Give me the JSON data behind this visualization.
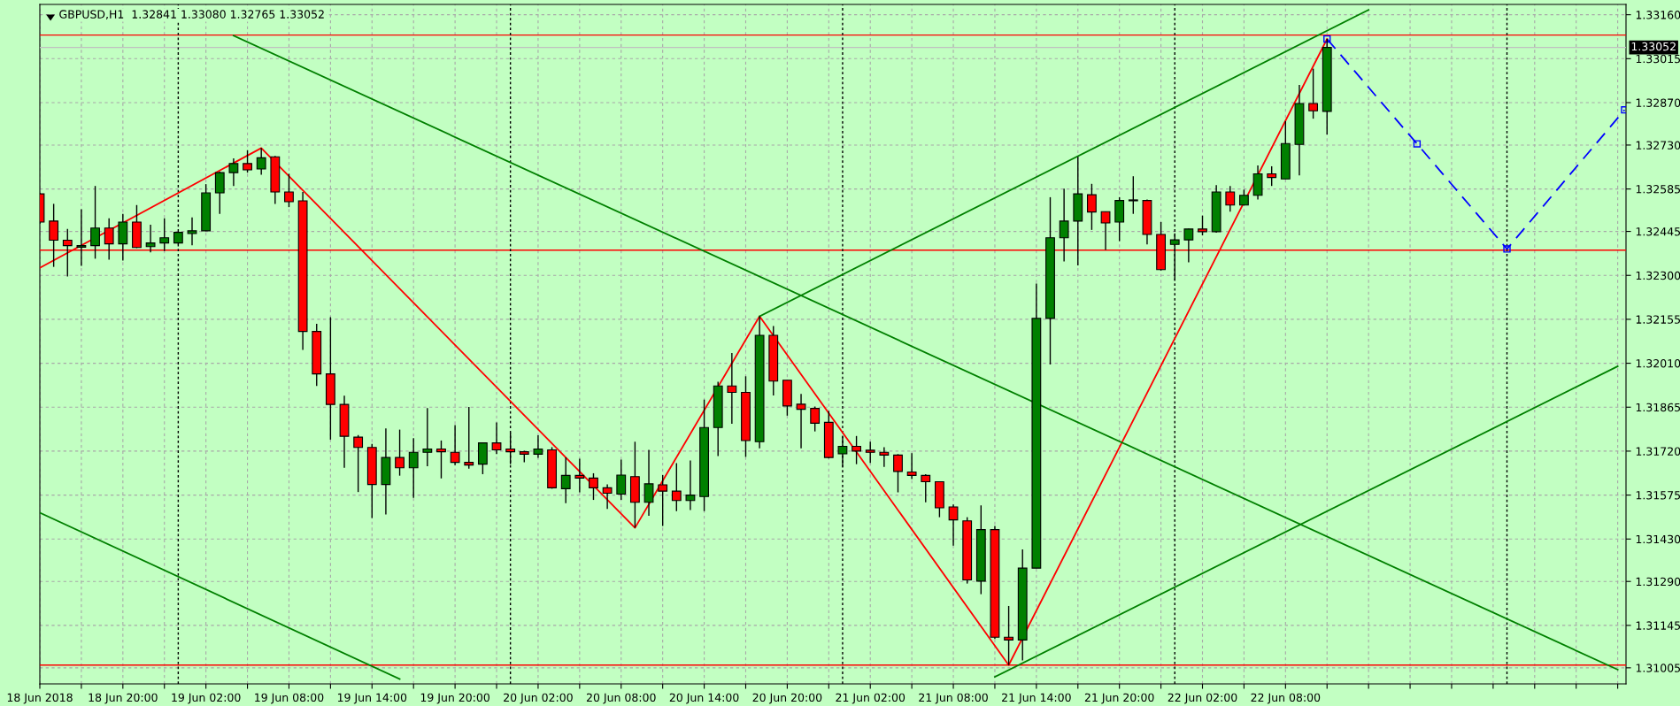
{
  "chart_data": {
    "type": "candlestick",
    "title": "GBPUSD,H1  1.32841 1.33080 1.32765 1.33052",
    "x": [
      "2018-06-18T14:00",
      "2018-06-18T15:00",
      "2018-06-18T16:00",
      "2018-06-18T17:00",
      "2018-06-18T18:00",
      "2018-06-18T19:00",
      "2018-06-18T20:00",
      "2018-06-18T21:00",
      "2018-06-18T22:00",
      "2018-06-18T23:00",
      "2018-06-19T00:00",
      "2018-06-19T01:00",
      "2018-06-19T02:00",
      "2018-06-19T03:00",
      "2018-06-19T04:00",
      "2018-06-19T05:00",
      "2018-06-19T06:00",
      "2018-06-19T07:00",
      "2018-06-19T08:00",
      "2018-06-19T09:00",
      "2018-06-19T10:00",
      "2018-06-19T11:00",
      "2018-06-19T12:00",
      "2018-06-19T13:00",
      "2018-06-19T14:00",
      "2018-06-19T15:00",
      "2018-06-19T16:00",
      "2018-06-19T17:00",
      "2018-06-19T18:00",
      "2018-06-19T19:00",
      "2018-06-19T20:00",
      "2018-06-19T21:00",
      "2018-06-19T22:00",
      "2018-06-19T23:00",
      "2018-06-20T00:00",
      "2018-06-20T01:00",
      "2018-06-20T02:00",
      "2018-06-20T03:00",
      "2018-06-20T04:00",
      "2018-06-20T05:00",
      "2018-06-20T06:00",
      "2018-06-20T07:00",
      "2018-06-20T08:00",
      "2018-06-20T09:00",
      "2018-06-20T10:00",
      "2018-06-20T11:00",
      "2018-06-20T12:00",
      "2018-06-20T13:00",
      "2018-06-20T14:00",
      "2018-06-20T15:00",
      "2018-06-20T16:00",
      "2018-06-20T17:00",
      "2018-06-20T18:00",
      "2018-06-20T19:00",
      "2018-06-20T20:00",
      "2018-06-20T21:00",
      "2018-06-20T22:00",
      "2018-06-20T23:00",
      "2018-06-21T00:00",
      "2018-06-21T01:00",
      "2018-06-21T02:00",
      "2018-06-21T03:00",
      "2018-06-21T04:00",
      "2018-06-21T05:00",
      "2018-06-21T06:00",
      "2018-06-21T07:00",
      "2018-06-21T08:00",
      "2018-06-21T09:00",
      "2018-06-21T10:00",
      "2018-06-21T11:00",
      "2018-06-21T12:00",
      "2018-06-21T13:00",
      "2018-06-21T14:00",
      "2018-06-21T15:00",
      "2018-06-21T16:00",
      "2018-06-21T17:00",
      "2018-06-21T18:00",
      "2018-06-21T19:00",
      "2018-06-21T20:00",
      "2018-06-21T21:00",
      "2018-06-21T22:00",
      "2018-06-21T23:00",
      "2018-06-22T00:00",
      "2018-06-22T01:00",
      "2018-06-22T02:00",
      "2018-06-22T03:00",
      "2018-06-22T04:00",
      "2018-06-22T05:00",
      "2018-06-22T06:00",
      "2018-06-22T07:00",
      "2018-06-22T08:00",
      "2018-06-22T09:00",
      "2018-06-22T10:00",
      "2018-06-22T11:00"
    ],
    "ohlc": [
      [
        1.32569,
        1.32572,
        1.3247,
        1.32476
      ],
      [
        1.32479,
        1.32536,
        1.32328,
        1.32416
      ],
      [
        1.32416,
        1.32453,
        1.32296,
        1.32398
      ],
      [
        1.32393,
        1.32518,
        1.32331,
        1.32398
      ],
      [
        1.32398,
        1.32595,
        1.32355,
        1.32456
      ],
      [
        1.32456,
        1.32488,
        1.32352,
        1.32404
      ],
      [
        1.32404,
        1.32503,
        1.32349,
        1.32476
      ],
      [
        1.32476,
        1.32532,
        1.3239,
        1.32392
      ],
      [
        1.32395,
        1.32467,
        1.32376,
        1.32407
      ],
      [
        1.32407,
        1.32488,
        1.3238,
        1.32424
      ],
      [
        1.32407,
        1.32444,
        1.32402,
        1.32442
      ],
      [
        1.32438,
        1.32491,
        1.32399,
        1.32447
      ],
      [
        1.32447,
        1.32601,
        1.32446,
        1.32572
      ],
      [
        1.32572,
        1.32642,
        1.32503,
        1.32639
      ],
      [
        1.32639,
        1.32686,
        1.32595,
        1.32669
      ],
      [
        1.32669,
        1.32713,
        1.32639,
        1.32648
      ],
      [
        1.32651,
        1.3272,
        1.32632,
        1.32688
      ],
      [
        1.32691,
        1.32694,
        1.32536,
        1.32575
      ],
      [
        1.32575,
        1.32635,
        1.32525,
        1.32543
      ],
      [
        1.32546,
        1.32575,
        1.32054,
        1.32115
      ],
      [
        1.32115,
        1.3214,
        1.31935,
        1.31975
      ],
      [
        1.31975,
        1.32162,
        1.31758,
        1.31874
      ],
      [
        1.31874,
        1.31903,
        1.31665,
        1.31769
      ],
      [
        1.31766,
        1.31773,
        1.31585,
        1.31732
      ],
      [
        1.31732,
        1.31744,
        1.31499,
        1.3161
      ],
      [
        1.3161,
        1.31795,
        1.31511,
        1.31699
      ],
      [
        1.31699,
        1.31791,
        1.31639,
        1.31665
      ],
      [
        1.31665,
        1.31763,
        1.31566,
        1.31716
      ],
      [
        1.31716,
        1.31862,
        1.3167,
        1.31727
      ],
      [
        1.31727,
        1.31755,
        1.3163,
        1.31718
      ],
      [
        1.31716,
        1.31806,
        1.31674,
        1.31683
      ],
      [
        1.31683,
        1.31866,
        1.31662,
        1.31674
      ],
      [
        1.31677,
        1.31748,
        1.31644,
        1.31747
      ],
      [
        1.31747,
        1.31815,
        1.3171,
        1.31724
      ],
      [
        1.31727,
        1.31781,
        1.31677,
        1.31718
      ],
      [
        1.31718,
        1.31721,
        1.31683,
        1.3171
      ],
      [
        1.3171,
        1.31772,
        1.31698,
        1.31727
      ],
      [
        1.31724,
        1.31733,
        1.31596,
        1.31599
      ],
      [
        1.31596,
        1.31699,
        1.31548,
        1.3164
      ],
      [
        1.3164,
        1.31695,
        1.31584,
        1.31631
      ],
      [
        1.31631,
        1.31647,
        1.31559,
        1.31599
      ],
      [
        1.31599,
        1.3161,
        1.31529,
        1.31581
      ],
      [
        1.31578,
        1.31692,
        1.31559,
        1.31641
      ],
      [
        1.31636,
        1.31751,
        1.31467,
        1.31551
      ],
      [
        1.31551,
        1.31724,
        1.31507,
        1.31612
      ],
      [
        1.31609,
        1.31641,
        1.31473,
        1.31588
      ],
      [
        1.31588,
        1.3168,
        1.31522,
        1.31557
      ],
      [
        1.31557,
        1.31689,
        1.31526,
        1.31575
      ],
      [
        1.3157,
        1.3189,
        1.31522,
        1.31798
      ],
      [
        1.31798,
        1.31949,
        1.31704,
        1.31935
      ],
      [
        1.31935,
        1.32044,
        1.3181,
        1.31914
      ],
      [
        1.31914,
        1.31967,
        1.31701,
        1.31755
      ],
      [
        1.31751,
        1.32165,
        1.31729,
        1.32102
      ],
      [
        1.32102,
        1.32133,
        1.31904,
        1.31951
      ],
      [
        1.31954,
        1.31954,
        1.31837,
        1.31869
      ],
      [
        1.31875,
        1.31909,
        1.31729,
        1.31858
      ],
      [
        1.31861,
        1.31867,
        1.31785,
        1.31812
      ],
      [
        1.31815,
        1.31852,
        1.31696,
        1.31699
      ],
      [
        1.31711,
        1.31769,
        1.31668,
        1.31736
      ],
      [
        1.31736,
        1.3177,
        1.31677,
        1.3172
      ],
      [
        1.31723,
        1.31751,
        1.31681,
        1.31716
      ],
      [
        1.31716,
        1.31733,
        1.31668,
        1.31707
      ],
      [
        1.31707,
        1.3171,
        1.31584,
        1.31653
      ],
      [
        1.31651,
        1.31713,
        1.31628,
        1.3164
      ],
      [
        1.3164,
        1.31644,
        1.31551,
        1.31619
      ],
      [
        1.31619,
        1.31619,
        1.31502,
        1.31533
      ],
      [
        1.31536,
        1.31544,
        1.31408,
        1.31493
      ],
      [
        1.3149,
        1.31502,
        1.31283,
        1.31295
      ],
      [
        1.31291,
        1.31541,
        1.31248,
        1.31461
      ],
      [
        1.31461,
        1.31473,
        1.311,
        1.31106
      ],
      [
        1.31106,
        1.31209,
        1.31014,
        1.31097
      ],
      [
        1.31097,
        1.31396,
        1.31029,
        1.31334
      ],
      [
        1.31334,
        1.32273,
        1.31334,
        1.32158
      ],
      [
        1.32158,
        1.32558,
        1.32006,
        1.32424
      ],
      [
        1.32424,
        1.32586,
        1.32346,
        1.32479
      ],
      [
        1.32479,
        1.32691,
        1.32333,
        1.32569
      ],
      [
        1.32566,
        1.32602,
        1.3245,
        1.32509
      ],
      [
        1.3251,
        1.3251,
        1.32384,
        1.32473
      ],
      [
        1.32476,
        1.32558,
        1.32413,
        1.32547
      ],
      [
        1.32546,
        1.32627,
        1.32503,
        1.32549
      ],
      [
        1.32547,
        1.3255,
        1.32402,
        1.32435
      ],
      [
        1.32435,
        1.32476,
        1.32316,
        1.32319
      ],
      [
        1.32402,
        1.32439,
        1.32284,
        1.32417
      ],
      [
        1.32417,
        1.32454,
        1.32343,
        1.32453
      ],
      [
        1.32453,
        1.32497,
        1.32432,
        1.32444
      ],
      [
        1.32444,
        1.32598,
        1.32441,
        1.32575
      ],
      [
        1.32575,
        1.32595,
        1.3251,
        1.32532
      ],
      [
        1.32532,
        1.32583,
        1.32531,
        1.32564
      ],
      [
        1.32564,
        1.32663,
        1.3255,
        1.32635
      ],
      [
        1.32635,
        1.3266,
        1.32595,
        1.32623
      ],
      [
        1.32618,
        1.32809,
        1.32618,
        1.32735
      ],
      [
        1.32732,
        1.32928,
        1.3263,
        1.32867
      ],
      [
        1.32867,
        1.32982,
        1.32817,
        1.32843
      ],
      [
        1.32841,
        1.3308,
        1.32765,
        1.33052
      ]
    ],
    "colors": [
      "#ff0000",
      "#ff0000",
      "#ff0000",
      "#008000",
      "#008000",
      "#ff0000",
      "#008000",
      "#ff0000",
      "#008000",
      "#008000",
      "#008000",
      "#008000",
      "#008000",
      "#008000",
      "#008000",
      "#ff0000",
      "#008000",
      "#ff0000",
      "#ff0000",
      "#ff0000",
      "#ff0000",
      "#ff0000",
      "#ff0000",
      "#ff0000",
      "#ff0000",
      "#008000",
      "#ff0000",
      "#008000",
      "#008000",
      "#ff0000",
      "#ff0000",
      "#ff0000",
      "#008000",
      "#ff0000",
      "#ff0000",
      "#ff0000",
      "#008000",
      "#ff0000",
      "#008000",
      "#ff0000",
      "#ff0000",
      "#ff0000",
      "#008000",
      "#ff0000",
      "#008000",
      "#ff0000",
      "#ff0000",
      "#008000",
      "#008000",
      "#008000",
      "#ff0000",
      "#ff0000",
      "#008000",
      "#ff0000",
      "#ff0000",
      "#ff0000",
      "#ff0000",
      "#ff0000",
      "#008000",
      "#ff0000",
      "#ff0000",
      "#ff0000",
      "#ff0000",
      "#ff0000",
      "#ff0000",
      "#ff0000",
      "#ff0000",
      "#ff0000",
      "#008000",
      "#ff0000",
      "#ff0000",
      "#008000",
      "#008000",
      "#008000",
      "#008000",
      "#008000",
      "#ff0000",
      "#ff0000",
      "#008000",
      "#008000",
      "#ff0000",
      "#ff0000",
      "#008000",
      "#008000",
      "#ff0000",
      "#008000",
      "#ff0000",
      "#008000",
      "#008000",
      "#ff0000",
      "#008000",
      "#008000",
      "#ff0000",
      "#008000"
    ],
    "series": [
      {
        "type": "line",
        "color": "#ff0000",
        "x": [
          "2018-06-18T14:00",
          "2018-06-19T06:00",
          "2018-06-20T09:00",
          "2018-06-20T18:00",
          "2018-06-21T12:00",
          "2018-06-22T11:00"
        ],
        "values": [
          1.32325,
          1.3272,
          1.31467,
          1.32165,
          1.31014,
          1.3308
        ]
      },
      {
        "type": "line",
        "color": "#008000",
        "x": [
          "2018-06-19T04:00",
          "2018-06-23T08:00"
        ],
        "values": [
          1.33091,
          1.30999
        ]
      },
      {
        "type": "line",
        "color": "#008000",
        "x": [
          "2018-06-18T14:00",
          "2018-06-19T16:00"
        ],
        "values": [
          1.31517,
          1.30968
        ]
      },
      {
        "type": "line",
        "color": "#008000",
        "x": [
          "2018-06-20T18:00",
          "2018-06-22T14:00"
        ],
        "values": [
          1.32165,
          1.33176
        ]
      },
      {
        "type": "line",
        "color": "#008000",
        "x": [
          "2018-06-21T11:00",
          "2018-06-23T08:00"
        ],
        "values": [
          1.30975,
          1.32
        ]
      },
      {
        "type": "line",
        "color": "#0000ff",
        "line_style": "dashed",
        "marker": "square",
        "x": [
          "2018-06-22T11:00",
          "2018-06-22T17:30",
          "2018-06-23T00:00",
          "2018-06-23T08:30"
        ],
        "values": [
          1.3308,
          1.32734,
          1.32387,
          1.32846
        ]
      }
    ],
    "ref_lines": [
      {
        "axis": "y",
        "value": 1.33093,
        "color": "#ff0000"
      },
      {
        "axis": "y",
        "value": 1.32383,
        "color": "#ff0000"
      },
      {
        "axis": "y",
        "value": 1.31014,
        "color": "#ff0000"
      },
      {
        "axis": "y",
        "value": 1.33052,
        "color": "#c0c0c0",
        "label": "1.33052"
      },
      {
        "axis": "x",
        "value": "2018-06-19T00:00",
        "color": "#000000",
        "line_style": "dotted"
      },
      {
        "axis": "x",
        "value": "2018-06-20T00:00",
        "color": "#000000",
        "line_style": "dotted"
      },
      {
        "axis": "x",
        "value": "2018-06-21T00:00",
        "color": "#000000",
        "line_style": "dotted"
      },
      {
        "axis": "x",
        "value": "2018-06-22T00:00",
        "color": "#000000",
        "line_style": "dotted"
      },
      {
        "axis": "x",
        "value": "2018-06-23T00:00",
        "color": "#000000",
        "line_style": "dotted"
      }
    ],
    "xlim": [
      "2018-06-18T14:00",
      "2018-06-23T08:36"
    ],
    "xticks": [
      {
        "value": "2018-06-18T14:00",
        "label": "18 Jun 2018"
      },
      {
        "value": "2018-06-18T17:00",
        "label": null
      },
      {
        "value": "2018-06-18T20:00",
        "label": "18 Jun 20:00"
      },
      {
        "value": "2018-06-18T23:00",
        "label": null
      },
      {
        "value": "2018-06-19T02:00",
        "label": "19 Jun 02:00"
      },
      {
        "value": "2018-06-19T05:00",
        "label": null
      },
      {
        "value": "2018-06-19T08:00",
        "label": "19 Jun 08:00"
      },
      {
        "value": "2018-06-19T11:00",
        "label": null
      },
      {
        "value": "2018-06-19T14:00",
        "label": "19 Jun 14:00"
      },
      {
        "value": "2018-06-19T17:00",
        "label": null
      },
      {
        "value": "2018-06-19T20:00",
        "label": "19 Jun 20:00"
      },
      {
        "value": "2018-06-19T23:00",
        "label": null
      },
      {
        "value": "2018-06-20T02:00",
        "label": "20 Jun 02:00"
      },
      {
        "value": "2018-06-20T05:00",
        "label": null
      },
      {
        "value": "2018-06-20T08:00",
        "label": "20 Jun 08:00"
      },
      {
        "value": "2018-06-20T11:00",
        "label": null
      },
      {
        "value": "2018-06-20T14:00",
        "label": "20 Jun 14:00"
      },
      {
        "value": "2018-06-20T17:00",
        "label": null
      },
      {
        "value": "2018-06-20T20:00",
        "label": "20 Jun 20:00"
      },
      {
        "value": "2018-06-20T23:00",
        "label": null
      },
      {
        "value": "2018-06-21T02:00",
        "label": "21 Jun 02:00"
      },
      {
        "value": "2018-06-21T05:00",
        "label": null
      },
      {
        "value": "2018-06-21T08:00",
        "label": "21 Jun 08:00"
      },
      {
        "value": "2018-06-21T11:00",
        "label": null
      },
      {
        "value": "2018-06-21T14:00",
        "label": "21 Jun 14:00"
      },
      {
        "value": "2018-06-21T17:00",
        "label": null
      },
      {
        "value": "2018-06-21T20:00",
        "label": "21 Jun 20:00"
      },
      {
        "value": "2018-06-21T23:00",
        "label": null
      },
      {
        "value": "2018-06-22T02:00",
        "label": "22 Jun 02:00"
      },
      {
        "value": "2018-06-22T05:00",
        "label": null
      },
      {
        "value": "2018-06-22T08:00",
        "label": "22 Jun 08:00"
      },
      {
        "value": "2018-06-22T11:00",
        "label": null
      },
      {
        "value": "2018-06-22T14:00",
        "label": null
      },
      {
        "value": "2018-06-22T17:00",
        "label": null
      },
      {
        "value": "2018-06-22T20:00",
        "label": null
      },
      {
        "value": "2018-06-22T23:00",
        "label": null
      },
      {
        "value": "2018-06-23T02:00",
        "label": null
      },
      {
        "value": "2018-06-23T05:00",
        "label": null
      },
      {
        "value": "2018-06-23T08:00",
        "label": null
      }
    ],
    "ylim": [
      1.30952,
      1.33194
    ],
    "yticks": [
      {
        "value": 1.3316,
        "label": "1.33160"
      },
      {
        "value": 1.33015,
        "label": "1.33015"
      },
      {
        "value": 1.3287,
        "label": "1.32870"
      },
      {
        "value": 1.3273,
        "label": "1.32730"
      },
      {
        "value": 1.32585,
        "label": "1.32585"
      },
      {
        "value": 1.32445,
        "label": "1.32445"
      },
      {
        "value": 1.323,
        "label": "1.32300"
      },
      {
        "value": 1.32155,
        "label": "1.32155"
      },
      {
        "value": 1.3201,
        "label": "1.32010"
      },
      {
        "value": 1.31865,
        "label": "1.31865"
      },
      {
        "value": 1.3172,
        "label": "1.31720"
      },
      {
        "value": 1.31575,
        "label": "1.31575"
      },
      {
        "value": 1.3143,
        "label": "1.31430"
      },
      {
        "value": 1.3129,
        "label": "1.31290"
      },
      {
        "value": 1.31145,
        "label": "1.31145"
      },
      {
        "value": 1.31005,
        "label": "1.31005"
      }
    ],
    "grid": true
  }
}
